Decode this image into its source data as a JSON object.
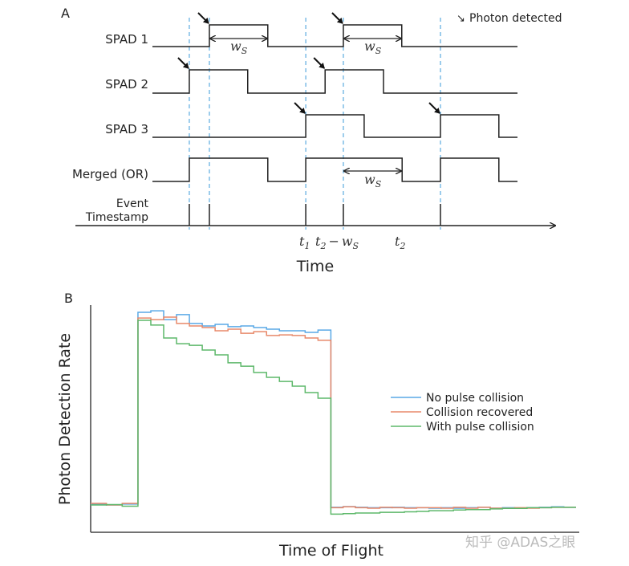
{
  "panel_a": {
    "label": "A",
    "legend_arrow": "↘",
    "legend_text": "Photon detected",
    "time_range": [
      0,
      100
    ],
    "pulse_width": 16,
    "signals": [
      {
        "name": "SPAD 1",
        "pulses": [
          15.6,
          52.3
        ],
        "photons": [
          15.6,
          52.3
        ]
      },
      {
        "name": "SPAD 2",
        "pulses": [
          10.1,
          47.3
        ],
        "photons": [
          10.1,
          47.3
        ]
      },
      {
        "name": "SPAD 3",
        "pulses": [
          42.0,
          78.9
        ],
        "photons": [
          42.0,
          78.9
        ]
      },
      {
        "name": "Merged (OR)",
        "intervals": [
          [
            10.1,
            31.6
          ],
          [
            42.0,
            68.4
          ],
          [
            78.9,
            94.9
          ]
        ]
      }
    ],
    "event_label_line1": "Event",
    "event_label_line2": "Timestamp",
    "event_times": [
      10.1,
      15.6,
      42.0,
      52.3,
      78.9
    ],
    "ws": {
      "main": "w",
      "sub": "S"
    },
    "t1": {
      "main": "t",
      "sub": "1"
    },
    "t2_minus_ws": {
      "t": "t",
      "tsub": "2",
      "minus": "−",
      "w": "w",
      "wsub": "S"
    },
    "t2": {
      "main": "t",
      "sub": "2"
    },
    "xlabel": "Time"
  },
  "panel_b": {
    "label": "B"
  },
  "watermark": "知乎 @ADAS之眼",
  "chart_data": {
    "type": "line",
    "title": "",
    "xlabel": "Time of Flight",
    "ylabel": "Photon Detection Rate",
    "xlim": [
      0,
      39
    ],
    "ylim": [
      0,
      1
    ],
    "grid": false,
    "legend_position": "center-right",
    "segments": [
      {
        "start": 0,
        "end": 3.8,
        "bins": 3
      },
      {
        "start": 3.8,
        "end": 19.3,
        "bins": 15
      },
      {
        "start": 19.3,
        "end": 39,
        "bins": 20
      }
    ],
    "series": [
      {
        "name": "No pulse collision",
        "color": "#5aa9e6",
        "values": [
          [
            0.124,
            0.12,
            0.124
          ],
          [
            0.968,
            0.975,
            0.936,
            0.958,
            0.919,
            0.908,
            0.915,
            0.905,
            0.908,
            0.901,
            0.894,
            0.887,
            0.887,
            0.88,
            0.89
          ],
          [
            0.11,
            0.113,
            0.11,
            0.108,
            0.108,
            0.11,
            0.108,
            0.108,
            0.106,
            0.108,
            0.106,
            0.108,
            0.11,
            0.106,
            0.108,
            0.106,
            0.108,
            0.11,
            0.112,
            0.11
          ]
        ]
      },
      {
        "name": "Collision recovered",
        "color": "#e8896a",
        "values": [
          [
            0.127,
            0.12,
            0.127
          ],
          [
            0.943,
            0.936,
            0.947,
            0.919,
            0.908,
            0.901,
            0.887,
            0.894,
            0.876,
            0.883,
            0.866,
            0.869,
            0.866,
            0.855,
            0.845
          ],
          [
            0.108,
            0.112,
            0.108,
            0.106,
            0.11,
            0.108,
            0.106,
            0.108,
            0.108,
            0.106,
            0.11,
            0.106,
            0.11,
            0.106,
            0.106,
            0.108,
            0.106,
            0.108,
            0.11,
            0.11
          ]
        ]
      },
      {
        "name": "With pulse collision",
        "color": "#5db86a",
        "values": [
          [
            0.12,
            0.122,
            0.115
          ],
          [
            0.933,
            0.912,
            0.855,
            0.83,
            0.823,
            0.802,
            0.781,
            0.746,
            0.731,
            0.703,
            0.682,
            0.664,
            0.643,
            0.615,
            0.59
          ],
          [
            0.08,
            0.082,
            0.085,
            0.085,
            0.088,
            0.088,
            0.09,
            0.092,
            0.095,
            0.095,
            0.098,
            0.1,
            0.1,
            0.103,
            0.105,
            0.105,
            0.108,
            0.108,
            0.11,
            0.11
          ]
        ]
      }
    ]
  }
}
